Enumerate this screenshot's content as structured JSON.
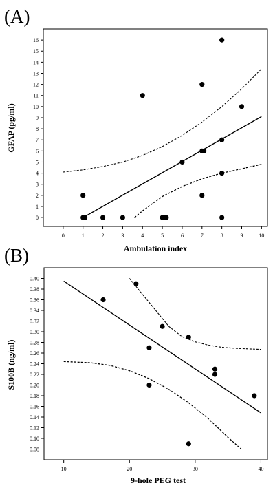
{
  "chart_data": [
    {
      "panel": "(A)",
      "type": "scatter",
      "xlabel": "Ambulation index",
      "ylabel": "GFAP (pg/ml)",
      "xlim": [
        -1,
        10.3
      ],
      "ylim": [
        -0.8,
        17
      ],
      "xticks": [
        0,
        1,
        2,
        3,
        4,
        5,
        6,
        7,
        8,
        9,
        10
      ],
      "yticks": [
        0,
        1,
        2,
        3,
        4,
        5,
        6,
        7,
        8,
        9,
        10,
        11,
        12,
        13,
        14,
        15,
        16
      ],
      "points": [
        {
          "x": 1,
          "y": 2
        },
        {
          "x": 1,
          "y": 0
        },
        {
          "x": 1.1,
          "y": 0
        },
        {
          "x": 2,
          "y": 0
        },
        {
          "x": 3,
          "y": 0
        },
        {
          "x": 4,
          "y": 11
        },
        {
          "x": 5,
          "y": 0
        },
        {
          "x": 5.1,
          "y": 0
        },
        {
          "x": 5.2,
          "y": 0
        },
        {
          "x": 6,
          "y": 5
        },
        {
          "x": 7,
          "y": 12
        },
        {
          "x": 7,
          "y": 6
        },
        {
          "x": 7.1,
          "y": 6
        },
        {
          "x": 7,
          "y": 2
        },
        {
          "x": 8,
          "y": 16
        },
        {
          "x": 8,
          "y": 7
        },
        {
          "x": 8,
          "y": 4
        },
        {
          "x": 8,
          "y": 0
        },
        {
          "x": 9,
          "y": 10
        }
      ],
      "regression": {
        "x": [
          1,
          10
        ],
        "y": [
          0,
          9.1
        ]
      },
      "ci_upper": {
        "x": [
          0,
          1,
          2,
          3,
          4,
          5,
          6,
          7,
          8,
          9,
          10
        ],
        "y": [
          4.1,
          4.3,
          4.6,
          5.0,
          5.6,
          6.4,
          7.4,
          8.6,
          10.0,
          11.6,
          13.4
        ]
      },
      "ci_lower": {
        "x": [
          3.6,
          4,
          5,
          6,
          7,
          8,
          9,
          10
        ],
        "y": [
          0,
          0.6,
          1.9,
          2.8,
          3.5,
          4.0,
          4.4,
          4.8
        ]
      }
    },
    {
      "panel": "(B)",
      "type": "scatter",
      "xlabel": "9-hole PEG test",
      "ylabel": "S100B (ng/ml)",
      "xlim": [
        7,
        41
      ],
      "ylim": [
        0.06,
        0.42
      ],
      "xticks": [
        10,
        20,
        30,
        40
      ],
      "yticks": [
        0.08,
        0.1,
        0.12,
        0.14,
        0.16,
        0.18,
        0.2,
        0.22,
        0.24,
        0.26,
        0.28,
        0.3,
        0.32,
        0.34,
        0.36,
        0.38,
        0.4
      ],
      "ytick_labels": [
        "0.08",
        "0.10",
        "0.12",
        "0.14",
        "0.16",
        "0.18",
        "0.20",
        "0.22",
        "0.24",
        "0.26",
        "0.28",
        "0.30",
        "0.32",
        "0.34",
        "0.36",
        "0.38",
        "0.40"
      ],
      "points": [
        {
          "x": 16,
          "y": 0.36
        },
        {
          "x": 21,
          "y": 0.39
        },
        {
          "x": 23,
          "y": 0.27
        },
        {
          "x": 23,
          "y": 0.2
        },
        {
          "x": 25,
          "y": 0.31
        },
        {
          "x": 29,
          "y": 0.29
        },
        {
          "x": 29,
          "y": 0.09
        },
        {
          "x": 33,
          "y": 0.23
        },
        {
          "x": 33,
          "y": 0.22
        },
        {
          "x": 39,
          "y": 0.18
        }
      ],
      "regression": {
        "x": [
          10,
          40
        ],
        "y": [
          0.395,
          0.148
        ]
      },
      "ci_upper": {
        "x": [
          20,
          22,
          24,
          26,
          28,
          30,
          32,
          34,
          36,
          38,
          40
        ],
        "y": [
          0.4,
          0.37,
          0.34,
          0.31,
          0.291,
          0.281,
          0.275,
          0.271,
          0.269,
          0.268,
          0.267
        ]
      },
      "ci_lower": {
        "x": [
          10,
          14,
          17,
          20,
          23,
          26,
          29,
          32,
          35,
          37
        ],
        "y": [
          0.244,
          0.242,
          0.237,
          0.227,
          0.212,
          0.192,
          0.167,
          0.137,
          0.102,
          0.08
        ]
      }
    }
  ]
}
